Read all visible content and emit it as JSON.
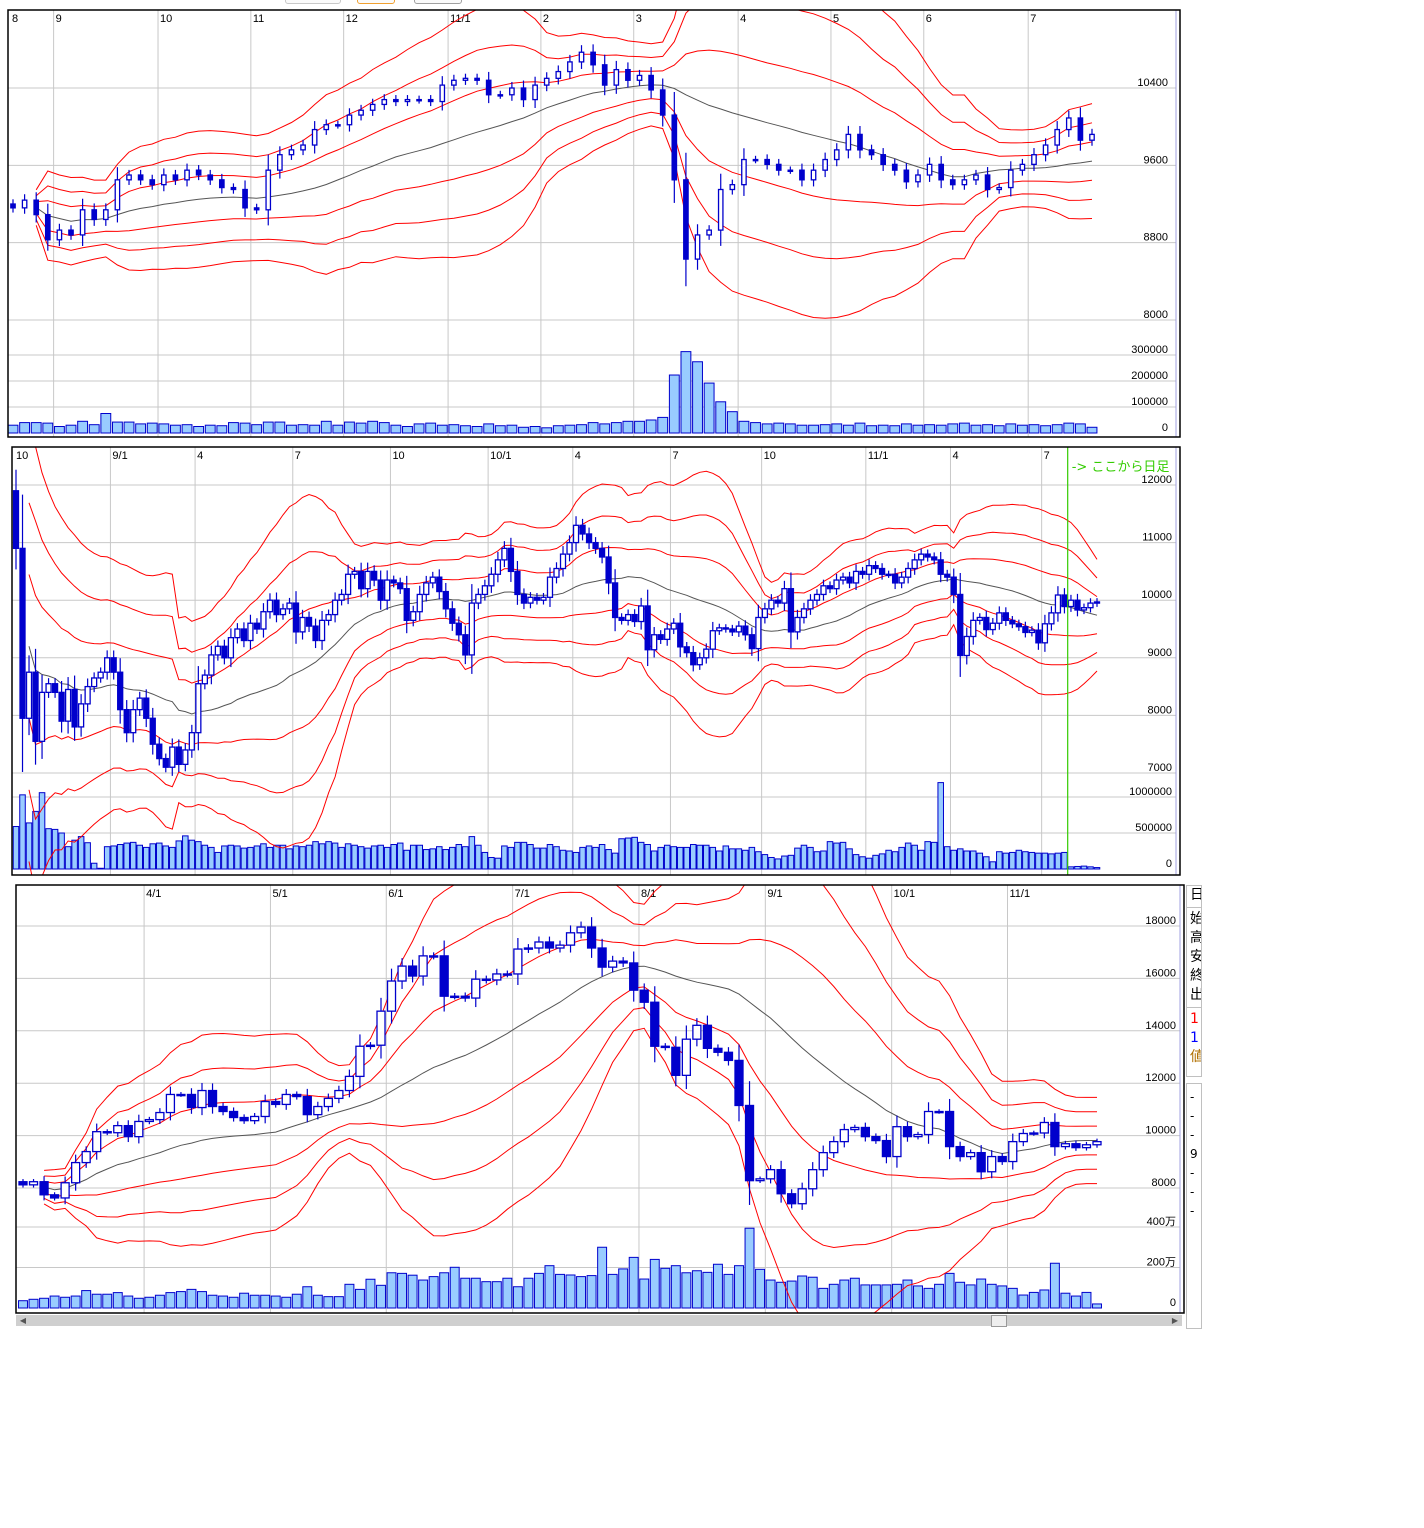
{
  "toolbar": {
    "buttons": [
      {
        "name": "button-1",
        "border": "#c8c8c8"
      },
      {
        "name": "button-2",
        "border": "#f0a030"
      },
      {
        "name": "button-3",
        "border": "#a0a0a0"
      }
    ]
  },
  "colors": {
    "band": "#ff0000",
    "ma": "#555555",
    "candle": "#0000cc",
    "volume_fill": "#99ccff",
    "grid": "#c8c8c8",
    "daily_marker": "#33cc00"
  },
  "daily_marker_label": "-> ここから日足",
  "side_panel": {
    "header": "日",
    "fields": [
      "始",
      "高",
      "安",
      "終",
      "出"
    ],
    "legend": [
      {
        "text": "1",
        "color": "#ff0000"
      },
      {
        "text": "1",
        "color": "#0000ff"
      },
      {
        "text": "値",
        "color": "#b07000"
      }
    ],
    "values": [
      "-",
      "-",
      "-",
      "9",
      "-",
      "-",
      "-"
    ]
  },
  "chart_data": [
    {
      "type": "candlestick",
      "indicators": [
        "moving average",
        "bollinger ±1σ",
        "bollinger ±2σ",
        "bollinger ±3σ"
      ],
      "date_labels": [
        {
          "label": "8",
          "index": 0
        },
        {
          "label": "9",
          "index": 4
        },
        {
          "label": "10",
          "index": 13
        },
        {
          "label": "11",
          "index": 21
        },
        {
          "label": "12",
          "index": 29
        },
        {
          "label": "11/1",
          "index": 38
        },
        {
          "label": "2",
          "index": 46
        },
        {
          "label": "3",
          "index": 54
        },
        {
          "label": "4",
          "index": 63
        },
        {
          "label": "5",
          "index": 71
        },
        {
          "label": "6",
          "index": 79
        },
        {
          "label": "7",
          "index": 88
        }
      ],
      "price_ticks": [
        10400,
        9600,
        8800,
        8000
      ],
      "volume_ticks": [
        {
          "value": 300000,
          "label": "300000"
        },
        {
          "value": 200000,
          "label": "200000"
        },
        {
          "value": 100000,
          "label": "100000"
        },
        {
          "value": 0,
          "label": "0"
        }
      ],
      "first_open": 9200,
      "close": [
        9160,
        9240,
        9090,
        8830,
        8930,
        8880,
        9140,
        9040,
        9140,
        9450,
        9500,
        9450,
        9400,
        9500,
        9450,
        9550,
        9500,
        9450,
        9370,
        9350,
        9160,
        9140,
        9550,
        9710,
        9760,
        9810,
        9970,
        10020,
        10020,
        10120,
        10170,
        10230,
        10280,
        10260,
        10280,
        10280,
        10260,
        10430,
        10480,
        10500,
        10480,
        10330,
        10330,
        10400,
        10280,
        10430,
        10500,
        10570,
        10670,
        10770,
        10640,
        10430,
        10590,
        10480,
        10530,
        10380,
        10120,
        9450,
        8630,
        8880,
        8930,
        9350,
        9400,
        9660,
        9660,
        9610,
        9550,
        9550,
        9450,
        9550,
        9660,
        9760,
        9920,
        9760,
        9710,
        9610,
        9550,
        9430,
        9500,
        9610,
        9450,
        9400,
        9450,
        9500,
        9350,
        9370,
        9550,
        9610,
        9710,
        9810,
        9970,
        10090,
        9860,
        9920
      ],
      "volume": [
        30000,
        40000,
        40000,
        38000,
        25000,
        30000,
        45000,
        32000,
        75000,
        42000,
        42000,
        35000,
        38000,
        35000,
        30000,
        32000,
        25000,
        30000,
        28000,
        40000,
        38000,
        32000,
        42000,
        42000,
        30000,
        32000,
        30000,
        45000,
        30000,
        42000,
        38000,
        45000,
        40000,
        30000,
        25000,
        35000,
        38000,
        30000,
        32000,
        28000,
        25000,
        35000,
        28000,
        30000,
        22000,
        25000,
        20000,
        28000,
        30000,
        32000,
        40000,
        35000,
        40000,
        45000,
        45000,
        50000,
        60000,
        223000,
        313000,
        274000,
        192000,
        120000,
        82000,
        45000,
        40000,
        35000,
        38000,
        35000,
        30000,
        30000,
        32000,
        35000,
        30000,
        38000,
        28000,
        30000,
        28000,
        35000,
        30000,
        32000,
        30000,
        35000,
        38000,
        30000,
        32000,
        28000,
        35000,
        30000,
        32000,
        28000,
        32000,
        38000,
        35000,
        22000
      ]
    },
    {
      "type": "candlestick",
      "indicators": [
        "moving average",
        "bollinger ±1σ",
        "bollinger ±2σ",
        "bollinger ±3σ"
      ],
      "date_labels": [
        {
          "label": "10",
          "index": 0
        },
        {
          "label": "9/1",
          "index": 15
        },
        {
          "label": "4",
          "index": 28
        },
        {
          "label": "7",
          "index": 43
        },
        {
          "label": "10",
          "index": 58
        },
        {
          "label": "10/1",
          "index": 73
        },
        {
          "label": "4",
          "index": 86
        },
        {
          "label": "7",
          "index": 101
        },
        {
          "label": "10",
          "index": 115
        },
        {
          "label": "11/1",
          "index": 131
        },
        {
          "label": "4",
          "index": 144
        },
        {
          "label": "7",
          "index": 158
        }
      ],
      "daily_from_index": 162,
      "price_ticks": [
        12000,
        11000,
        10000,
        9000,
        8000,
        7000
      ],
      "volume_ticks": [
        {
          "value": 1000000,
          "label": "1000000"
        },
        {
          "value": 500000,
          "label": "500000"
        },
        {
          "value": 0,
          "label": "0"
        }
      ],
      "first_open": 11900,
      "close": [
        10900,
        7950,
        8750,
        7550,
        8400,
        8550,
        8400,
        7900,
        8450,
        7800,
        8200,
        8500,
        8650,
        8750,
        9000,
        8750,
        8100,
        7700,
        8100,
        8300,
        7950,
        7500,
        7250,
        7100,
        7450,
        7150,
        7400,
        7700,
        8550,
        8700,
        9050,
        9200,
        9000,
        9350,
        9500,
        9300,
        9600,
        9500,
        9800,
        10000,
        9750,
        9850,
        9950,
        9450,
        9700,
        9550,
        9300,
        9650,
        9750,
        10000,
        10100,
        10450,
        10500,
        10200,
        10500,
        10350,
        10000,
        10350,
        10300,
        10200,
        9650,
        9800,
        10100,
        10300,
        10400,
        10150,
        9850,
        9600,
        9400,
        9050,
        9950,
        10100,
        10250,
        10450,
        10700,
        10900,
        10500,
        10100,
        9950,
        10050,
        10000,
        10050,
        10400,
        10550,
        10800,
        11000,
        11300,
        11150,
        11000,
        10900,
        10750,
        10300,
        9700,
        9650,
        9750,
        9630,
        9900,
        9140,
        9400,
        9320,
        9500,
        9600,
        9190,
        9090,
        8880,
        9000,
        9150,
        9470,
        9520,
        9500,
        9450,
        9550,
        9400,
        9160,
        9700,
        9850,
        10000,
        9950,
        10200,
        9450,
        9700,
        9850,
        10000,
        10100,
        10250,
        10200,
        10350,
        10400,
        10300,
        10500,
        10450,
        10600,
        10550,
        10450,
        10450,
        10300,
        10400,
        10550,
        10700,
        10800,
        10750,
        10700,
        10450,
        10400,
        10100,
        9040,
        9370,
        9650,
        9700,
        9490,
        9600,
        9780,
        9650,
        9590,
        9540,
        9440,
        9480,
        9260,
        9590,
        9780,
        10090,
        9890,
        10000,
        9830,
        9870,
        9950,
        9970
      ],
      "volume": [
        590000,
        1030000,
        640000,
        800000,
        1060000,
        560000,
        550000,
        500000,
        310000,
        400000,
        450000,
        365000,
        80000,
        10000,
        310000,
        320000,
        340000,
        360000,
        370000,
        330000,
        300000,
        350000,
        360000,
        320000,
        300000,
        390000,
        460000,
        400000,
        380000,
        330000,
        300000,
        230000,
        320000,
        330000,
        320000,
        290000,
        300000,
        320000,
        350000,
        300000,
        330000,
        330000,
        280000,
        320000,
        310000,
        330000,
        380000,
        350000,
        380000,
        360000,
        300000,
        350000,
        330000,
        310000,
        290000,
        320000,
        330000,
        300000,
        340000,
        360000,
        260000,
        330000,
        330000,
        270000,
        280000,
        310000,
        270000,
        300000,
        340000,
        310000,
        450000,
        330000,
        230000,
        160000,
        150000,
        320000,
        300000,
        370000,
        370000,
        340000,
        290000,
        290000,
        340000,
        310000,
        260000,
        250000,
        230000,
        300000,
        320000,
        300000,
        340000,
        270000,
        220000,
        420000,
        430000,
        440000,
        370000,
        340000,
        250000,
        300000,
        330000,
        310000,
        300000,
        300000,
        340000,
        330000,
        330000,
        300000,
        250000,
        320000,
        280000,
        280000,
        260000,
        300000,
        240000,
        200000,
        160000,
        140000,
        180000,
        190000,
        290000,
        330000,
        300000,
        240000,
        250000,
        380000,
        360000,
        370000,
        280000,
        200000,
        170000,
        150000,
        190000,
        210000,
        260000,
        240000,
        300000,
        360000,
        330000,
        260000,
        380000,
        370000,
        1200000,
        310000,
        260000,
        280000,
        250000,
        250000,
        220000,
        170000,
        100000,
        240000,
        220000,
        230000,
        260000,
        240000,
        230000,
        220000,
        220000,
        210000,
        220000,
        230000,
        30000,
        35000,
        40000,
        30000,
        20000
      ]
    },
    {
      "type": "candlestick",
      "indicators": [
        "moving average",
        "bollinger ±1σ",
        "bollinger ±2σ",
        "bollinger ±3σ"
      ],
      "date_labels": [
        {
          "label": "4/1",
          "index": 12
        },
        {
          "label": "5/1",
          "index": 24
        },
        {
          "label": "6/1",
          "index": 35
        },
        {
          "label": "7/1",
          "index": 47
        },
        {
          "label": "8/1",
          "index": 59
        },
        {
          "label": "9/1",
          "index": 71
        },
        {
          "label": "10/1",
          "index": 83
        },
        {
          "label": "11/1",
          "index": 94
        }
      ],
      "price_ticks": [
        18000,
        16000,
        14000,
        12000,
        10000,
        8000
      ],
      "volume_unit": "万",
      "volume_ticks": [
        {
          "value": 400,
          "label": "400万"
        },
        {
          "value": 200,
          "label": "200万"
        },
        {
          "value": 0,
          "label": "0"
        }
      ],
      "first_open": 8240,
      "close": [
        8120,
        8240,
        7740,
        7620,
        8200,
        8970,
        9390,
        10150,
        10110,
        10380,
        9960,
        10540,
        10610,
        10880,
        11570,
        11570,
        11070,
        11720,
        11110,
        10920,
        10690,
        10570,
        10730,
        11300,
        11190,
        11570,
        11490,
        10800,
        11110,
        11420,
        11720,
        12260,
        13410,
        13450,
        14750,
        15900,
        16470,
        16090,
        16860,
        16860,
        15320,
        15320,
        15250,
        15970,
        15940,
        16170,
        16170,
        17120,
        17160,
        17390,
        17160,
        17270,
        17740,
        17960,
        17160,
        16430,
        16660,
        16590,
        15550,
        15090,
        13410,
        13370,
        12300,
        13680,
        14210,
        13330,
        13180,
        12870,
        11150,
        8280,
        8350,
        8700,
        7780,
        7400,
        7970,
        8700,
        9350,
        9770,
        10230,
        10310,
        9960,
        9810,
        9200,
        10340,
        9960,
        10040,
        10920,
        10920,
        9580,
        9200,
        9350,
        8620,
        9200,
        9010,
        9770,
        10080,
        10100,
        10500,
        9580,
        9690,
        9540,
        9650,
        9770
      ],
      "volume": [
        36,
        43,
        48,
        59,
        53,
        59,
        86,
        68,
        68,
        76,
        59,
        48,
        53,
        63,
        76,
        81,
        92,
        81,
        63,
        59,
        53,
        73,
        63,
        63,
        59,
        53,
        68,
        105,
        63,
        56,
        56,
        117,
        92,
        142,
        112,
        174,
        171,
        162,
        138,
        155,
        174,
        201,
        147,
        147,
        130,
        130,
        147,
        105,
        147,
        171,
        209,
        166,
        163,
        155,
        160,
        300,
        166,
        193,
        250,
        143,
        240,
        196,
        209,
        174,
        184,
        176,
        216,
        166,
        209,
        394,
        191,
        138,
        127,
        133,
        158,
        152,
        97,
        117,
        138,
        147,
        114,
        114,
        114,
        117,
        138,
        109,
        97,
        117,
        171,
        127,
        114,
        143,
        117,
        109,
        97,
        64,
        77,
        89,
        221,
        73,
        59,
        77,
        20
      ]
    }
  ]
}
